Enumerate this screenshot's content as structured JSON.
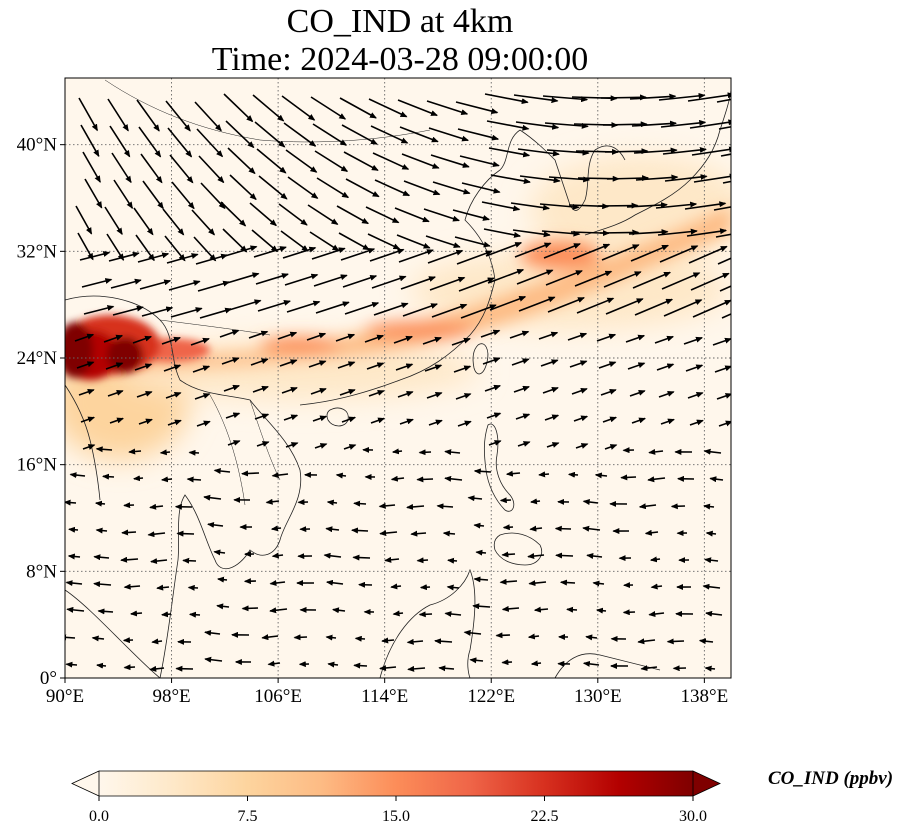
{
  "title": {
    "line1": "CO_IND at 4km",
    "line2": "Time: 2024-03-28 09:00:00"
  },
  "map": {
    "extent": {
      "lon_min": 90,
      "lon_max": 140,
      "lat_min": 0,
      "lat_max": 45
    },
    "gridlines": "dotted",
    "x_tick_labels": [
      "90°E",
      "98°E",
      "106°E",
      "114°E",
      "122°E",
      "130°E",
      "138°E"
    ],
    "x_tick_values": [
      90,
      98,
      106,
      114,
      122,
      130,
      138
    ],
    "y_tick_labels": [
      "0°",
      "8°N",
      "16°N",
      "24°N",
      "32°N",
      "40°N"
    ],
    "y_tick_values": [
      0,
      8,
      16,
      24,
      32,
      40
    ],
    "wind_vectors": "black arrows",
    "colormap": "OrRd"
  },
  "colorbar": {
    "label": "CO_IND (ppbv)",
    "tick_labels": [
      "0.0",
      "7.5",
      "15.0",
      "22.5",
      "30.0"
    ],
    "tick_values": [
      0,
      7.5,
      15,
      22.5,
      30
    ],
    "range": [
      0,
      30
    ],
    "extend": "both",
    "colors": [
      "#fff7ec",
      "#fee8c8",
      "#fdd49e",
      "#fdbb84",
      "#fc8d59",
      "#ef6548",
      "#d7301f",
      "#b30000",
      "#7f0000"
    ]
  }
}
